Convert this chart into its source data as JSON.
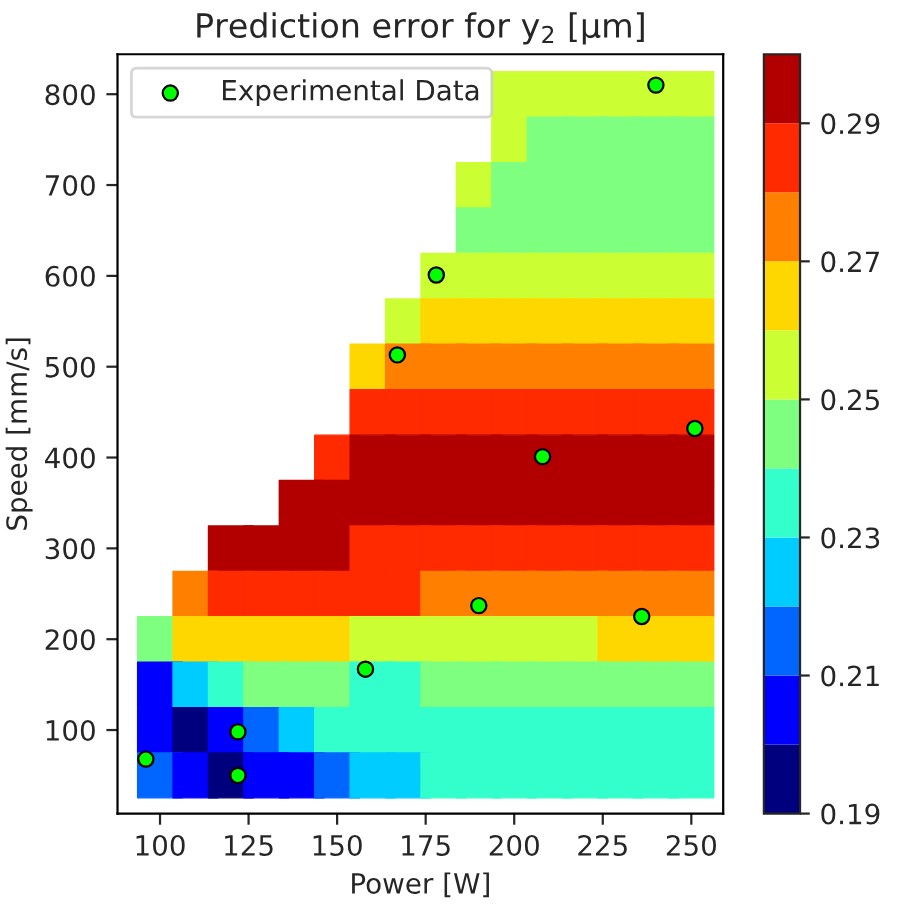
{
  "chart_data": {
    "type": "scatter",
    "title": "Prediction error for y$_{2}$ [μm]",
    "xlabel": "Power [W]",
    "ylabel": "Speed [mm/s]",
    "colors": [
      "#00007f",
      "#0000ff",
      "#0066ff",
      "#00ccff",
      "#33ffcc",
      "#7fff7f",
      "#ccff33",
      "#ffd700",
      "#ff8000",
      "#ff2a00",
      "#b20000"
    ],
    "clim": [
      0.19,
      0.3
    ],
    "cticks": [
      0.19,
      0.21,
      0.23,
      0.25,
      0.27,
      0.29
    ],
    "xlim": [
      88,
      259
    ],
    "xticks": [
      100,
      125,
      150,
      175,
      200,
      225,
      250
    ],
    "ylim": [
      8,
      844
    ],
    "yticks": [
      100,
      200,
      300,
      400,
      500,
      600,
      700,
      800
    ],
    "series": [
      {
        "marker": "square",
        "colors": [
          "#ccff33",
          "#ccff33",
          "#ccff33",
          "#ccff33",
          "#ccff33",
          "#ccff33",
          "#ccff33",
          "#7fff7f",
          "#7fff7f",
          "#7fff7f",
          "#7fff7f",
          "#7fff7f",
          "#ccff33",
          "#7fff7f",
          "#7fff7f",
          "#7fff7f",
          "#7fff7f",
          "#7fff7f",
          "#7fff7f",
          "#7fff7f",
          "#7fff7f",
          "#7fff7f",
          "#7fff7f",
          "#7fff7f",
          "#7fff7f",
          "#7fff7f",
          "#ccff33",
          "#ccff33",
          "#ccff33",
          "#ccff33",
          "#ccff33",
          "#ccff33",
          "#ccff33",
          "#ccff33",
          "#ccff33",
          "#ffd700",
          "#ffd700",
          "#ffd700",
          "#ffd700",
          "#ffd700",
          "#ffd700",
          "#ffd700",
          "#ffd700",
          "#ffd700",
          "#ff8000",
          "#ff8000",
          "#ff8000",
          "#ff8000",
          "#ff8000",
          "#ff8000",
          "#ff8000",
          "#ff8000",
          "#ff8000",
          "#ff2a00",
          "#ff2a00",
          "#ff2a00",
          "#ff2a00",
          "#ff2a00",
          "#ff2a00",
          "#ff2a00",
          "#ff2a00",
          "#ff2a00",
          "#ff2a00",
          "#ff2a00",
          "#b20000",
          "#b20000",
          "#b20000",
          "#b20000",
          "#b20000",
          "#b20000",
          "#b20000",
          "#b20000",
          "#b20000",
          "#b20000",
          "#b20000",
          "#b20000",
          "#b20000",
          "#b20000",
          "#b20000",
          "#b20000",
          "#b20000",
          "#b20000",
          "#b20000",
          "#b20000",
          "#b20000",
          "#b20000",
          "#b20000",
          "#b20000",
          "#b20000",
          "#b20000",
          "#ff2a00",
          "#ff2a00",
          "#ff2a00",
          "#ff2a00",
          "#ff2a00",
          "#ff2a00",
          "#ff2a00",
          "#ff2a00",
          "#ff2a00",
          "#ff2a00",
          "#ff8000",
          "#ff2a00",
          "#ff2a00",
          "#ff2a00",
          "#ff2a00",
          "#ff2a00",
          "#ff2a00",
          "#ff8000",
          "#ff8000",
          "#ff8000",
          "#ff8000",
          "#ff8000",
          "#ff8000",
          "#ff8000",
          "#ff8000",
          "#7fff7f",
          "#ffd700",
          "#ffd700",
          "#ffd700",
          "#ffd700",
          "#ffd700",
          "#ccff33",
          "#ccff33",
          "#ccff33",
          "#ccff33",
          "#ccff33",
          "#ccff33",
          "#ccff33",
          "#ffd700",
          "#ffd700",
          "#ffd700",
          "#0000ff",
          "#00ccff",
          "#33ffcc",
          "#7fff7f",
          "#7fff7f",
          "#7fff7f",
          "#33ffcc",
          "#33ffcc",
          "#7fff7f",
          "#7fff7f",
          "#7fff7f",
          "#7fff7f",
          "#7fff7f",
          "#7fff7f",
          "#7fff7f",
          "#7fff7f",
          "#0000ff",
          "#00007f",
          "#0000ff",
          "#0066ff",
          "#00ccff",
          "#33ffcc",
          "#33ffcc",
          "#33ffcc",
          "#33ffcc",
          "#33ffcc",
          "#33ffcc",
          "#33ffcc",
          "#33ffcc",
          "#33ffcc",
          "#33ffcc",
          "#33ffcc",
          "#0066ff",
          "#0000ff",
          "#00007f",
          "#0000ff",
          "#0000ff",
          "#0066ff",
          "#00ccff",
          "#00ccff",
          "#33ffcc",
          "#33ffcc",
          "#33ffcc",
          "#33ffcc",
          "#33ffcc",
          "#33ffcc",
          "#33ffcc",
          "#33ffcc"
        ],
        "x": [
          200,
          210,
          220,
          230,
          240,
          250,
          200,
          210,
          220,
          230,
          240,
          250,
          190,
          200,
          210,
          220,
          230,
          240,
          250,
          190,
          200,
          210,
          220,
          230,
          240,
          250,
          180,
          190,
          200,
          210,
          220,
          230,
          240,
          250,
          170,
          180,
          190,
          200,
          210,
          220,
          230,
          240,
          250,
          160,
          170,
          180,
          190,
          200,
          210,
          220,
          230,
          240,
          250,
          160,
          170,
          180,
          190,
          200,
          210,
          220,
          230,
          240,
          250,
          150,
          160,
          170,
          180,
          190,
          200,
          210,
          220,
          230,
          240,
          250,
          140,
          150,
          160,
          170,
          180,
          190,
          200,
          210,
          220,
          230,
          240,
          250,
          120,
          130,
          140,
          150,
          160,
          170,
          180,
          190,
          200,
          210,
          220,
          230,
          240,
          250,
          110,
          120,
          130,
          140,
          150,
          160,
          170,
          180,
          190,
          200,
          210,
          220,
          230,
          240,
          250,
          100,
          110,
          120,
          130,
          140,
          150,
          160,
          170,
          180,
          190,
          200,
          210,
          220,
          230,
          240,
          250,
          100,
          110,
          120,
          130,
          140,
          150,
          160,
          170,
          180,
          190,
          200,
          210,
          220,
          230,
          240,
          250,
          100,
          110,
          120,
          130,
          140,
          150,
          160,
          170,
          180,
          190,
          200,
          210,
          220,
          230,
          240,
          250,
          100,
          110,
          120,
          130,
          140,
          150,
          160,
          170,
          180,
          190,
          200,
          210,
          220,
          230,
          240,
          250
        ],
        "values": [
          800,
          800,
          800,
          800,
          800,
          800,
          750,
          750,
          750,
          750,
          750,
          750,
          700,
          700,
          700,
          700,
          700,
          700,
          700,
          650,
          650,
          650,
          650,
          650,
          650,
          650,
          600,
          600,
          600,
          600,
          600,
          600,
          600,
          600,
          550,
          550,
          550,
          550,
          550,
          550,
          550,
          550,
          550,
          500,
          500,
          500,
          500,
          500,
          500,
          500,
          500,
          500,
          500,
          450,
          450,
          450,
          450,
          450,
          450,
          450,
          450,
          450,
          450,
          400,
          400,
          400,
          400,
          400,
          400,
          400,
          400,
          400,
          400,
          400,
          350,
          350,
          350,
          350,
          350,
          350,
          350,
          350,
          350,
          350,
          350,
          350,
          300,
          300,
          300,
          300,
          300,
          300,
          300,
          300,
          300,
          300,
          300,
          300,
          300,
          300,
          250,
          250,
          250,
          250,
          250,
          250,
          250,
          250,
          250,
          250,
          250,
          250,
          250,
          250,
          250,
          200,
          200,
          200,
          200,
          200,
          200,
          200,
          200,
          200,
          200,
          200,
          200,
          200,
          200,
          200,
          200,
          150,
          150,
          150,
          150,
          150,
          150,
          150,
          150,
          150,
          150,
          150,
          150,
          150,
          150,
          150,
          150,
          100,
          100,
          100,
          100,
          100,
          100,
          100,
          100,
          100,
          100,
          100,
          100,
          100,
          100,
          100,
          100,
          50,
          50,
          50,
          50,
          50,
          50,
          50,
          50,
          50,
          50,
          50,
          50,
          50,
          50,
          50,
          50
        ],
        "cvalues": [
          0.255,
          0.255,
          0.255,
          0.255,
          0.255,
          0.255,
          0.255,
          0.245,
          0.245,
          0.245,
          0.245,
          0.245,
          0.255,
          0.245,
          0.245,
          0.245,
          0.245,
          0.245,
          0.245,
          0.245,
          0.245,
          0.245,
          0.245,
          0.245,
          0.245,
          0.245,
          0.255,
          0.255,
          0.255,
          0.255,
          0.255,
          0.255,
          0.255,
          0.255,
          0.255,
          0.265,
          0.265,
          0.265,
          0.265,
          0.265,
          0.265,
          0.265,
          0.265,
          0.265,
          0.275,
          0.275,
          0.275,
          0.275,
          0.275,
          0.275,
          0.275,
          0.275,
          0.275,
          0.285,
          0.285,
          0.285,
          0.285,
          0.285,
          0.285,
          0.285,
          0.285,
          0.285,
          0.285,
          0.285,
          0.295,
          0.295,
          0.295,
          0.295,
          0.295,
          0.295,
          0.295,
          0.295,
          0.295,
          0.295,
          0.295,
          0.295,
          0.295,
          0.295,
          0.295,
          0.295,
          0.295,
          0.295,
          0.295,
          0.295,
          0.295,
          0.295,
          0.295,
          0.295,
          0.295,
          0.295,
          0.285,
          0.285,
          0.285,
          0.285,
          0.285,
          0.285,
          0.285,
          0.285,
          0.285,
          0.285,
          0.275,
          0.285,
          0.285,
          0.285,
          0.285,
          0.285,
          0.285,
          0.275,
          0.275,
          0.275,
          0.275,
          0.275,
          0.275,
          0.275,
          0.275,
          0.245,
          0.265,
          0.265,
          0.265,
          0.265,
          0.265,
          0.255,
          0.255,
          0.255,
          0.255,
          0.255,
          0.255,
          0.255,
          0.265,
          0.265,
          0.265,
          0.205,
          0.225,
          0.235,
          0.245,
          0.245,
          0.245,
          0.235,
          0.235,
          0.245,
          0.245,
          0.245,
          0.245,
          0.245,
          0.245,
          0.245,
          0.245,
          0.205,
          0.195,
          0.205,
          0.215,
          0.225,
          0.235,
          0.235,
          0.235,
          0.235,
          0.235,
          0.235,
          0.235,
          0.235,
          0.235,
          0.235,
          0.235,
          0.215,
          0.205,
          0.195,
          0.205,
          0.205,
          0.215,
          0.225,
          0.225,
          0.235,
          0.235,
          0.235,
          0.235,
          0.235,
          0.235,
          0.235,
          0.235
        ]
      },
      {
        "name": "Experimental Data",
        "color": "#00ff00",
        "marker": "circle",
        "x": [
          96,
          122,
          122,
          158,
          190,
          236,
          208,
          251,
          167,
          178,
          240
        ],
        "values": [
          68,
          98,
          50,
          167,
          237,
          225,
          401,
          432,
          513,
          601,
          810
        ]
      }
    ],
    "legend": "top left",
    "grid": false
  }
}
